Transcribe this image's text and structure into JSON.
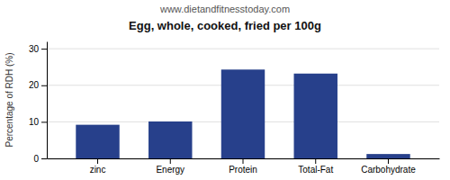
{
  "chart_data": {
    "type": "bar",
    "title": "Egg, whole, cooked, fried per 100g",
    "subtitle": "www.dietandfitnesstoday.com",
    "categories": [
      "zinc",
      "Energy",
      "Protein",
      "Total-Fat",
      "Carbohydrate"
    ],
    "values": [
      9.2,
      10.1,
      24.3,
      23.2,
      1.2
    ],
    "color": "#27408B",
    "ylabel": "Percentage of RDH (%)",
    "ylim": [
      0,
      32
    ],
    "yticks": [
      0,
      10,
      20,
      30
    ],
    "grid": true
  }
}
